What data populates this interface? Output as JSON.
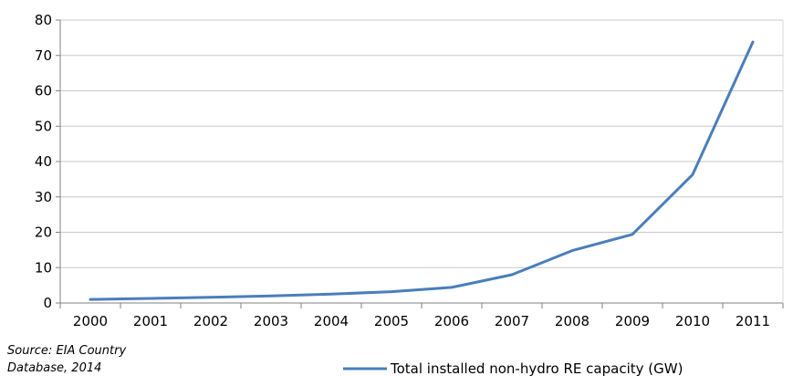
{
  "chart_data": {
    "type": "line",
    "title": "",
    "xlabel": "",
    "ylabel": "",
    "ylim": [
      0,
      80
    ],
    "yticks": [
      0,
      10,
      20,
      30,
      40,
      50,
      60,
      70,
      80
    ],
    "grid": "horizontal",
    "legend_position": "bottom-right",
    "categories": [
      "2000",
      "2001",
      "2002",
      "2003",
      "2004",
      "2005",
      "2006",
      "2007",
      "2008",
      "2009",
      "2010",
      "2011"
    ],
    "series": [
      {
        "name": "Total installed non-hydro RE capacity (GW)",
        "color": "#4a7ebb",
        "values": [
          1.0,
          1.3,
          1.6,
          2.0,
          2.5,
          3.2,
          4.4,
          8.0,
          14.8,
          19.4,
          36.3,
          73.8
        ]
      }
    ],
    "source": {
      "line1": "Source: EIA Country",
      "line2": "Database, 2014"
    }
  }
}
